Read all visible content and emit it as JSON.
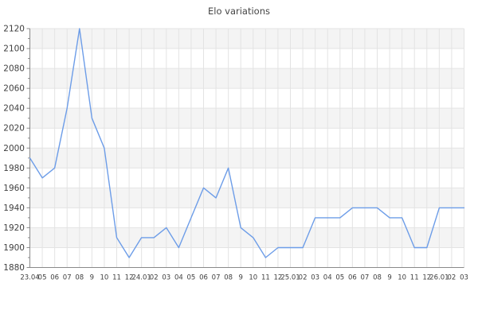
{
  "title": "Elo variations",
  "colors": {
    "background": "#ffffff",
    "line": "#6d9de8",
    "band": "#f4f4f4",
    "grid": "#e3e3e3",
    "axis": "#8a8a8a",
    "tick": "#8a8a8a",
    "label": "#3f3f3f",
    "title": "#454545"
  },
  "chart_data": {
    "type": "line",
    "title": "Elo variations",
    "x_labels": [
      "23.04",
      "05",
      "06",
      "07",
      "08",
      "9",
      "10",
      "11",
      "12",
      "24.01",
      "02",
      "03",
      "04",
      "05",
      "06",
      "07",
      "08",
      "9",
      "10",
      "11",
      "12",
      "25.01",
      "02",
      "03",
      "04",
      "05",
      "06",
      "07",
      "08",
      "9",
      "10",
      "11",
      "12",
      "26.01",
      "02",
      "03"
    ],
    "values": [
      1990,
      1970,
      1980,
      2040,
      2120,
      2030,
      2000,
      1910,
      1890,
      1910,
      1910,
      1920,
      1900,
      1930,
      1960,
      1950,
      1980,
      1920,
      1910,
      1890,
      1900,
      1900,
      1900,
      1930,
      1930,
      1930,
      1940,
      1940,
      1940,
      1930,
      1930,
      1900,
      1900,
      1940,
      1940,
      1940
    ],
    "ylim": [
      1880,
      2120
    ],
    "y_tick_step": 20,
    "y_minor_tick_step": 10,
    "y_tick_labels": [
      "2120",
      "2100",
      "2080",
      "2060",
      "2040",
      "2020",
      "2000",
      "1980",
      "1960",
      "1940",
      "1920",
      "1900",
      "1880"
    ],
    "grid": true,
    "banding": "alternating horizontal bands every 20 Elo, shaded band starts at top (2120-2100)",
    "legend": "none"
  }
}
